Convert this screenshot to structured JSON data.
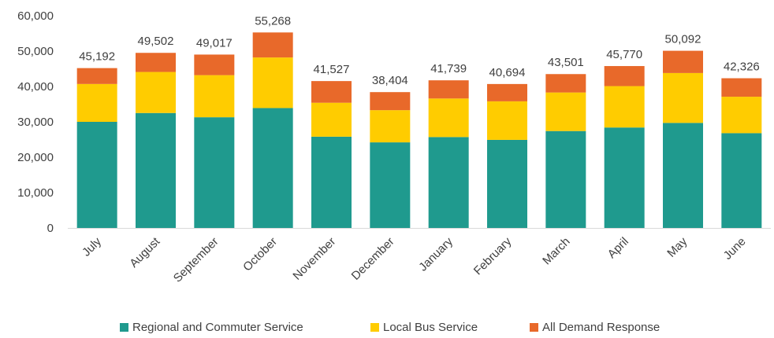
{
  "chart_data": {
    "type": "bar",
    "stacked": true,
    "categories": [
      "July",
      "August",
      "September",
      "October",
      "November",
      "December",
      "January",
      "February",
      "March",
      "April",
      "May",
      "June"
    ],
    "series": [
      {
        "name": "Regional and Commuter Service",
        "color": "#1f9a8e",
        "values": [
          30000,
          32500,
          31300,
          33900,
          25800,
          24200,
          25700,
          24900,
          27400,
          28400,
          29700,
          26800
        ]
      },
      {
        "name": "Local Bus Service",
        "color": "#ffcc00",
        "values": [
          10700,
          11600,
          11900,
          14300,
          9600,
          9100,
          10900,
          10900,
          10900,
          11700,
          14100,
          10300
        ]
      },
      {
        "name": "All Demand Response",
        "color": "#e8692a",
        "values": [
          4492,
          5402,
          5817,
          7068,
          6127,
          5104,
          5139,
          4894,
          5201,
          5670,
          6292,
          5226
        ]
      }
    ],
    "totals": [
      "45,192",
      "49,502",
      "49,017",
      "55,268",
      "41,527",
      "38,404",
      "41,739",
      "40,694",
      "43,501",
      "45,770",
      "50,092",
      "42,326"
    ],
    "y_ticks": [
      "0",
      "10,000",
      "20,000",
      "30,000",
      "40,000",
      "50,000",
      "60,000"
    ],
    "ylim": [
      0,
      60000
    ],
    "legend_position": "bottom",
    "grid": false
  }
}
